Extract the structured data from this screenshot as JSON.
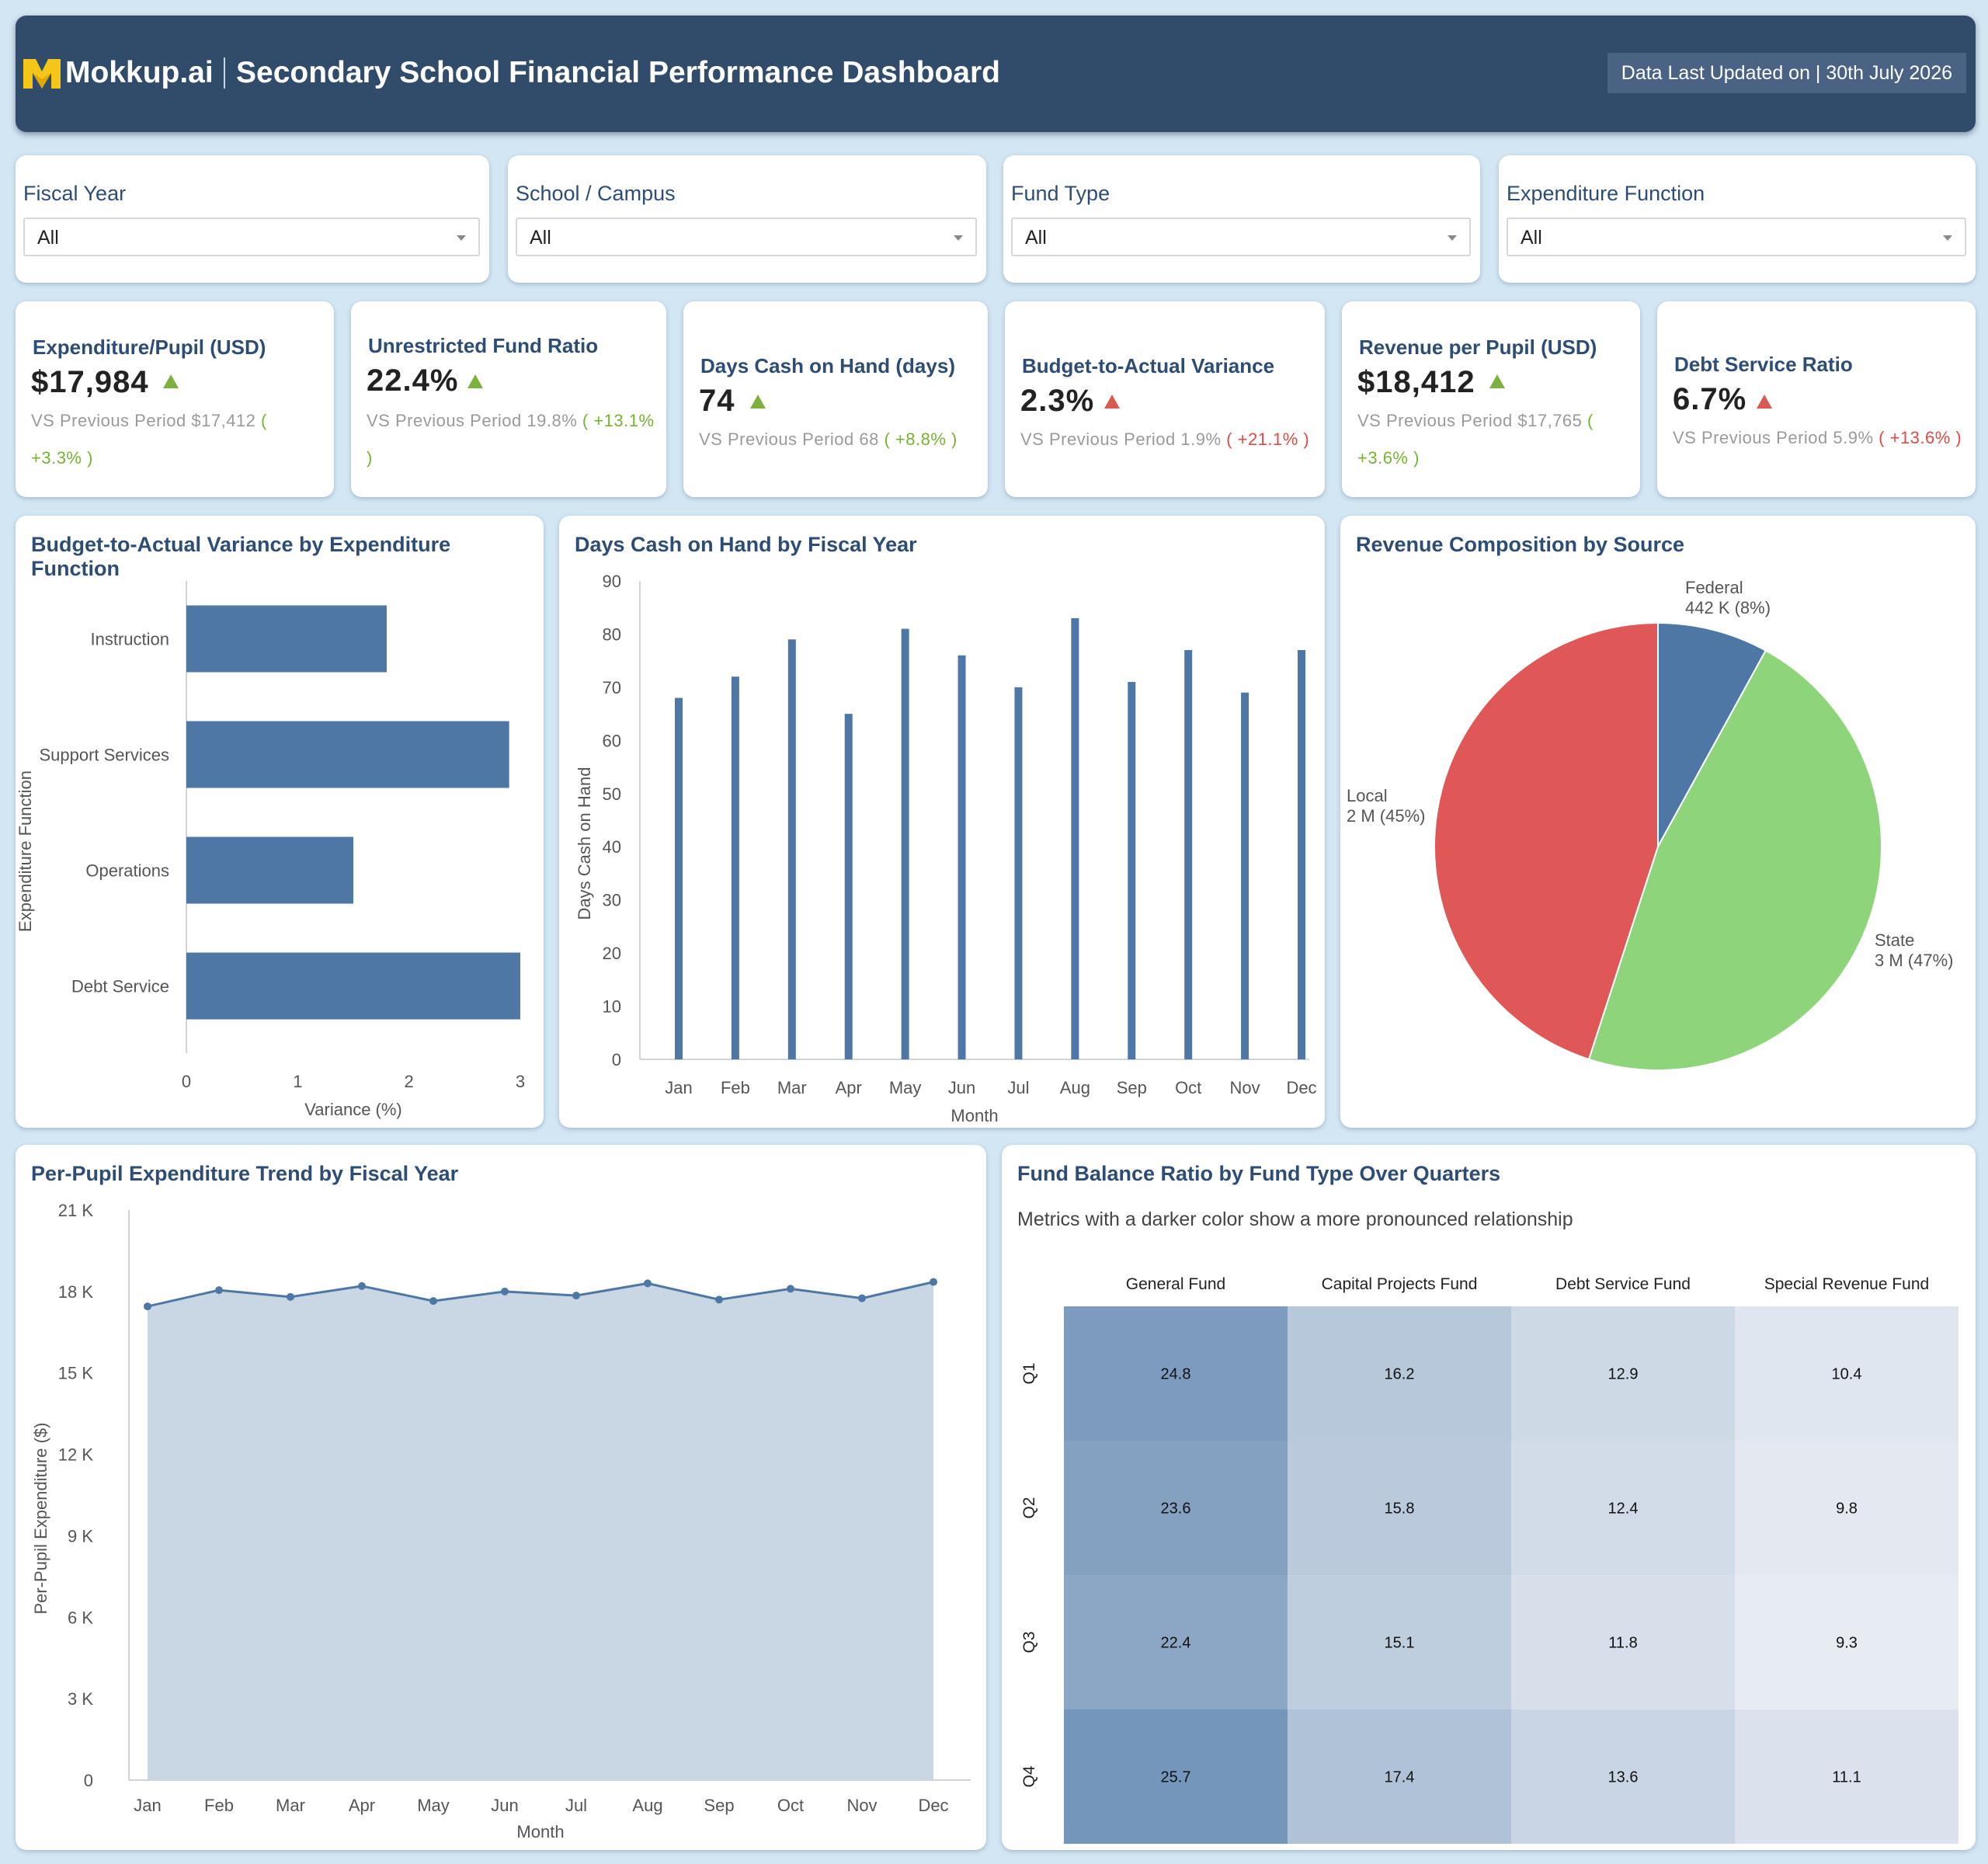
{
  "header": {
    "brand": "Mokkup.ai",
    "title": "Secondary School Financial Performance Dashboard",
    "updated": "Data Last Updated on | 30th July 2026",
    "logo_icon": "mokkup-logo-icon"
  },
  "filters": [
    {
      "label": "Fiscal Year",
      "value": "All"
    },
    {
      "label": "School / Campus",
      "value": "All"
    },
    {
      "label": "Fund Type",
      "value": "All"
    },
    {
      "label": "Expenditure Function",
      "value": "All"
    }
  ],
  "kpis": [
    {
      "title": "Expenditure/Pupil (USD)",
      "value": "$17,984",
      "compare": "VS Previous Period $17,412",
      "change": "( +3.3% )",
      "trend": "up",
      "change_color": "#78b232"
    },
    {
      "title": "Unrestricted Fund Ratio",
      "value": "22.4%",
      "compare": "VS Previous Period 19.8%",
      "change": "( +13.1% )",
      "trend": "up",
      "change_color": "#78b232"
    },
    {
      "title": "Days Cash on Hand (days)",
      "value": "74",
      "compare": "VS Previous Period 68",
      "change": "( +8.8% )",
      "trend": "up",
      "change_color": "#78b232"
    },
    {
      "title": "Budget-to-Actual Variance",
      "value": "2.3%",
      "compare": "VS Previous Period 1.9%",
      "change": "( +21.1% )",
      "trend": "up",
      "change_color": "#df4a46"
    },
    {
      "title": "Revenue per Pupil (USD)",
      "value": "$18,412",
      "compare": "VS Previous Period $17,765",
      "change": "( +3.6% )",
      "trend": "up",
      "change_color": "#78b232"
    },
    {
      "title": "Debt Service Ratio",
      "value": "6.7%",
      "compare": "VS Previous Period 5.9%",
      "change": "( +13.6% )",
      "trend": "up",
      "change_color": "#df4a46"
    }
  ],
  "chart_data": [
    {
      "type": "bar",
      "orientation": "horizontal",
      "title": "Budget-to-Actual Variance by Expenditure Function",
      "categories": [
        "Instruction",
        "Support Services",
        "Operations",
        "Debt Service"
      ],
      "values": [
        1.8,
        2.9,
        1.5,
        3.0
      ],
      "xlabel": "Variance (%)",
      "ylabel": "Expenditure Function",
      "xlim": [
        0,
        3
      ],
      "xticks": [
        "0",
        "1",
        "2",
        "3"
      ],
      "color": "#4e77a5",
      "grid": false
    },
    {
      "type": "bar",
      "title": "Days Cash on Hand by Fiscal Year",
      "categories": [
        "Jan",
        "Feb",
        "Mar",
        "Apr",
        "May",
        "Jun",
        "Jul",
        "Aug",
        "Sep",
        "Oct",
        "Nov",
        "Dec"
      ],
      "values": [
        68,
        72,
        79,
        65,
        81,
        76,
        70,
        83,
        71,
        77,
        69,
        77
      ],
      "xlabel": "Month",
      "ylabel": "Days Cash on Hand",
      "ylim": [
        0,
        90
      ],
      "yticks": [
        "0",
        "10",
        "20",
        "30",
        "40",
        "50",
        "60",
        "70",
        "80",
        "90"
      ],
      "color": "#4e77a5",
      "grid": false
    },
    {
      "type": "pie",
      "title": "Revenue Composition by Source",
      "slices": [
        {
          "name": "Federal",
          "label": "442 K (8%)",
          "value": 8,
          "color": "#4e77a5"
        },
        {
          "name": "State",
          "label": "3 M (47%)",
          "value": 47,
          "color": "#8ed47b"
        },
        {
          "name": "Local",
          "label": "2 M (45%)",
          "value": 45,
          "color": "#e05757"
        }
      ]
    },
    {
      "type": "area",
      "title": "Per-Pupil Expenditure Trend by Fiscal Year",
      "categories": [
        "Jan",
        "Feb",
        "Mar",
        "Apr",
        "May",
        "Jun",
        "Jul",
        "Aug",
        "Sep",
        "Oct",
        "Nov",
        "Dec"
      ],
      "values": [
        17450,
        18050,
        17800,
        18200,
        17650,
        18000,
        17850,
        18300,
        17700,
        18100,
        17750,
        18350
      ],
      "xlabel": "Month",
      "ylabel": "Per-Pupil Expenditure ($)",
      "ylim": [
        0,
        21000
      ],
      "yticks": [
        "0",
        "3 K",
        "6 K",
        "9 K",
        "12 K",
        "15 K",
        "18 K",
        "21 K"
      ],
      "line_color": "#4e77a5",
      "fill_color": "#c9d7e4",
      "grid": false
    },
    {
      "type": "heatmap",
      "title": "Fund Balance Ratio by Fund Type Over Quarters",
      "subtitle": "Metrics with a darker color show a more pronounced relationship",
      "columns": [
        "General Fund",
        "Capital Projects Fund",
        "Debt Service Fund",
        "Special Revenue Fund"
      ],
      "rows": [
        "Q1",
        "Q2",
        "Q3",
        "Q4"
      ],
      "values": [
        [
          24.8,
          16.2,
          12.9,
          10.4
        ],
        [
          23.6,
          15.8,
          12.4,
          9.8
        ],
        [
          22.4,
          15.1,
          11.8,
          9.3
        ],
        [
          25.7,
          17.4,
          13.6,
          11.1
        ]
      ],
      "color_low": "#f2f4f8",
      "color_high": "#6c8fb6"
    }
  ]
}
